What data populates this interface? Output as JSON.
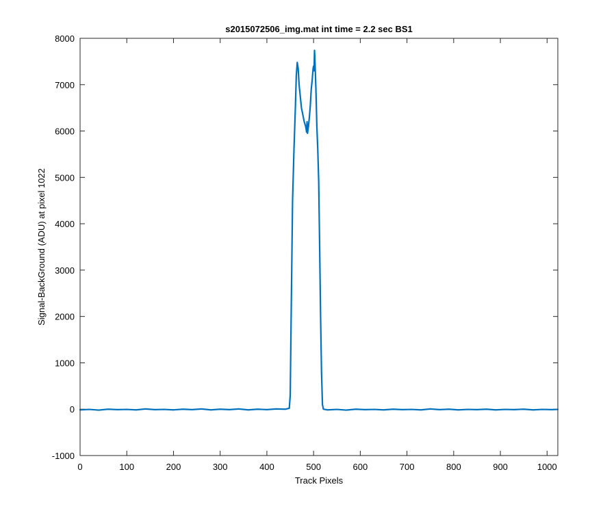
{
  "chart_data": {
    "type": "line",
    "title": "s2015072506_img.mat int time = 2.2 sec   BS1",
    "xlabel": "Track Pixels",
    "ylabel": "Signal-BackGround (ADU) at pixel 1022",
    "xlim": [
      0,
      1023
    ],
    "ylim": [
      -1000,
      8000
    ],
    "xticks": [
      0,
      100,
      200,
      300,
      400,
      500,
      600,
      700,
      800,
      900,
      1000
    ],
    "yticks": [
      -1000,
      0,
      1000,
      2000,
      3000,
      4000,
      5000,
      6000,
      7000,
      8000
    ],
    "grid": false,
    "series": [
      {
        "color": "#0072bd",
        "points": [
          [
            0,
            -15
          ],
          [
            20,
            -5
          ],
          [
            40,
            -20
          ],
          [
            60,
            0
          ],
          [
            80,
            -10
          ],
          [
            100,
            -5
          ],
          [
            120,
            -15
          ],
          [
            140,
            5
          ],
          [
            160,
            -10
          ],
          [
            180,
            -5
          ],
          [
            200,
            -15
          ],
          [
            220,
            0
          ],
          [
            240,
            -10
          ],
          [
            260,
            5
          ],
          [
            280,
            -15
          ],
          [
            300,
            0
          ],
          [
            320,
            -10
          ],
          [
            340,
            5
          ],
          [
            360,
            -15
          ],
          [
            380,
            0
          ],
          [
            400,
            -10
          ],
          [
            420,
            5
          ],
          [
            440,
            0
          ],
          [
            448,
            20
          ],
          [
            450,
            300
          ],
          [
            452,
            2000
          ],
          [
            455,
            4500
          ],
          [
            458,
            5600
          ],
          [
            461,
            6500
          ],
          [
            463,
            7200
          ],
          [
            465,
            7480
          ],
          [
            467,
            7350
          ],
          [
            469,
            7000
          ],
          [
            471,
            6800
          ],
          [
            474,
            6500
          ],
          [
            477,
            6350
          ],
          [
            480,
            6200
          ],
          [
            483,
            6100
          ],
          [
            485,
            5980
          ],
          [
            486,
            6200
          ],
          [
            487,
            5950
          ],
          [
            489,
            6100
          ],
          [
            491,
            6300
          ],
          [
            493,
            6550
          ],
          [
            495,
            6900
          ],
          [
            497,
            7100
          ],
          [
            499,
            7350
          ],
          [
            500,
            7400
          ],
          [
            501,
            7300
          ],
          [
            502,
            7740
          ],
          [
            503,
            7500
          ],
          [
            505,
            6900
          ],
          [
            507,
            6100
          ],
          [
            509,
            5600
          ],
          [
            511,
            4900
          ],
          [
            513,
            3500
          ],
          [
            515,
            2000
          ],
          [
            517,
            800
          ],
          [
            519,
            100
          ],
          [
            521,
            0
          ],
          [
            530,
            -15
          ],
          [
            550,
            -5
          ],
          [
            570,
            -20
          ],
          [
            590,
            0
          ],
          [
            610,
            -10
          ],
          [
            630,
            -5
          ],
          [
            650,
            -15
          ],
          [
            670,
            0
          ],
          [
            690,
            -10
          ],
          [
            710,
            -5
          ],
          [
            730,
            -15
          ],
          [
            750,
            5
          ],
          [
            770,
            -10
          ],
          [
            790,
            0
          ],
          [
            810,
            -15
          ],
          [
            830,
            -5
          ],
          [
            850,
            -10
          ],
          [
            870,
            0
          ],
          [
            890,
            -15
          ],
          [
            910,
            -5
          ],
          [
            930,
            -10
          ],
          [
            950,
            0
          ],
          [
            970,
            -15
          ],
          [
            990,
            -5
          ],
          [
            1010,
            -10
          ],
          [
            1023,
            -5
          ]
        ]
      }
    ]
  }
}
